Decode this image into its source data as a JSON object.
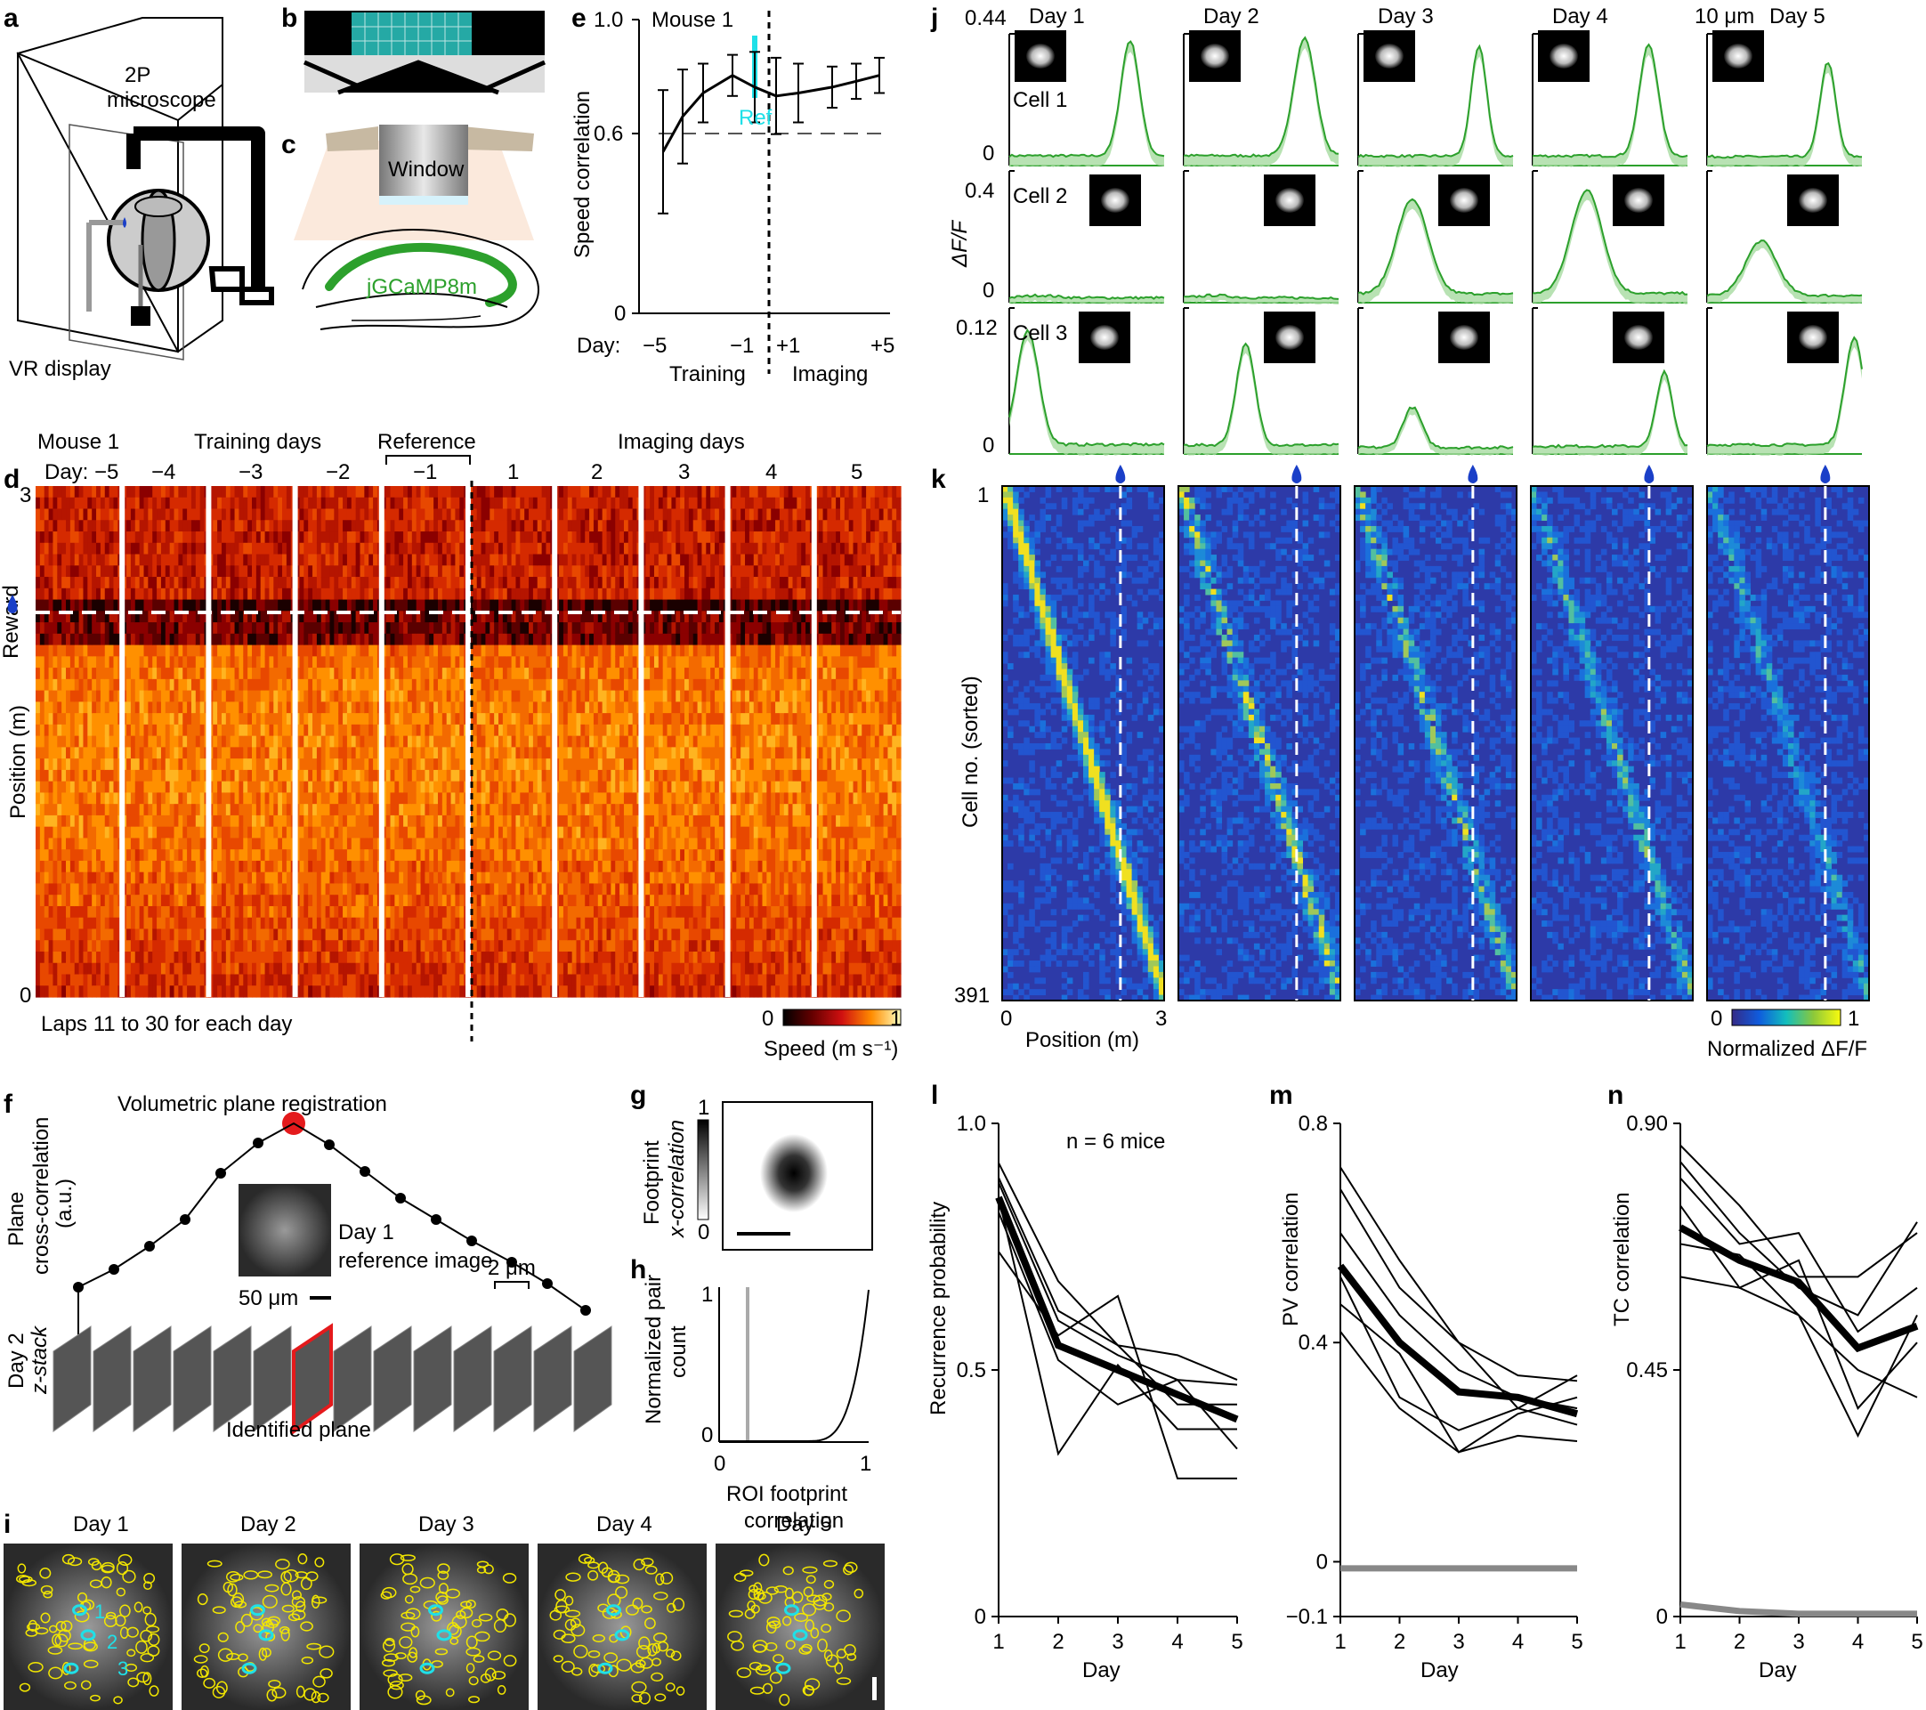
{
  "panel_letters": {
    "a": "a",
    "b": "b",
    "c": "c",
    "d": "d",
    "e": "e",
    "f": "f",
    "g": "g",
    "h": "h",
    "i": "i",
    "j": "j",
    "k": "k",
    "l": "l",
    "m": "m",
    "n": "n"
  },
  "colors": {
    "green": "#2ca02c",
    "cyan": "#1fe0e8",
    "red": "#e41a1c",
    "yellow": "#f2e600",
    "black": "#000000",
    "gray": "#808080"
  },
  "panel_a": {
    "microscope_l1": "2P",
    "microscope_l2": "microscope",
    "display": "VR display"
  },
  "panel_c": {
    "window": "Window",
    "indicator": "jGCaMP8m"
  },
  "panel_e": {
    "mouse": "Mouse 1",
    "ylabel": "Speed correlation",
    "yticks": [
      "1.0",
      "0.6",
      "0"
    ],
    "xtick_prefix": "Day:",
    "xticks": [
      "−5",
      "−1",
      "+1",
      "+5"
    ],
    "group_training": "Training",
    "group_imaging": "Imaging",
    "ref": "Ref"
  },
  "panel_d": {
    "header": {
      "mouse": "Mouse 1",
      "training": "Training days",
      "reference": "Reference",
      "imaging": "Imaging days"
    },
    "day_labels": [
      "Day: −5",
      "−4",
      "−3",
      "−2",
      "−1",
      "1",
      "2",
      "3",
      "4",
      "5"
    ],
    "yticks": [
      "3",
      "0"
    ],
    "ylabel": "Position (m)",
    "reward": "Reward",
    "footnote": "Laps 11 to 30 for each day",
    "cbar_min": "0",
    "cbar_max": "1",
    "cbar_label": "Speed (m s⁻¹)"
  },
  "panel_j": {
    "days": [
      "Day 1",
      "Day 2",
      "Day 3",
      "Day 4",
      "Day 5"
    ],
    "scale": "10 μm",
    "ylabel": "ΔF/F",
    "cells": [
      {
        "name": "Cell 1",
        "ymax": "0.44",
        "ymin": "0"
      },
      {
        "name": "Cell 2",
        "ymax": "0.4",
        "ymin": "0"
      },
      {
        "name": "Cell 3",
        "ymax": "0.12",
        "ymin": "0"
      }
    ]
  },
  "panel_k": {
    "ylabel": "Cell no. (sorted)",
    "ytick_top": "1",
    "ytick_bottom": "391",
    "xtick_min": "0",
    "xtick_max": "3",
    "xlabel": "Position (m)",
    "cbar_min": "0",
    "cbar_max": "1",
    "cbar_label": "Normalized ΔF/F"
  },
  "panel_f": {
    "title": "Volumetric plane registration",
    "ylabel_l1": "Plane",
    "ylabel_l2": "cross-correlation",
    "ylabel_l3": "(a.u.)",
    "inset_l1": "Day 1",
    "inset_l2": "reference image",
    "scale_inset": "50 μm",
    "scale_stack": "2 μm",
    "stack_l1": "Day 2",
    "stack_l2": "z-stack",
    "identified": "Identified plane"
  },
  "panel_g": {
    "ylabel_l1": "Footprint",
    "ylabel_l2": "x-correlation",
    "cbar_max": "1",
    "cbar_min": "0"
  },
  "panel_h": {
    "ylabel_l1": "Normalized pair",
    "ylabel_l2": "count",
    "yticks": [
      "1",
      "0"
    ],
    "xticks": [
      "0",
      "1"
    ],
    "xlabel_l1": "ROI footprint",
    "xlabel_l2": "correlation"
  },
  "panel_i": {
    "days": [
      "Day 1",
      "Day 2",
      "Day 3",
      "Day 4",
      "Day 5"
    ],
    "cell_numbers": [
      "1",
      "2",
      "3"
    ]
  },
  "chart_data": [
    {
      "id": "e",
      "type": "line",
      "title": "Mouse 1",
      "xlabel": "Day",
      "ylabel": "Speed correlation",
      "x": [
        -5,
        -4,
        -3,
        -2,
        -1,
        1,
        2,
        3,
        4,
        5
      ],
      "series": [
        {
          "values": [
            0.55,
            0.67,
            0.75,
            0.81,
            0.77,
            0.74,
            0.75,
            0.77,
            0.79,
            0.81
          ],
          "err": [
            0.21,
            0.16,
            0.1,
            0.07,
            0.12,
            0.13,
            0.1,
            0.07,
            0.06,
            0.06
          ]
        }
      ],
      "xlim": [
        -5.3,
        5.3
      ],
      "ylim": [
        0,
        1
      ],
      "reference_line": 0.6
    },
    {
      "id": "l",
      "type": "line",
      "xlabel": "Day",
      "ylabel": "Recurrence probability",
      "annotation": "n = 6 mice",
      "x": [
        1,
        2,
        3,
        4,
        5
      ],
      "xlim": [
        1,
        5
      ],
      "ylim": [
        0,
        1
      ],
      "yticks": [
        "0",
        "0.5",
        "1.0"
      ],
      "xticks": [
        "1",
        "2",
        "3",
        "4",
        "5"
      ],
      "mean": [
        0.85,
        0.55,
        0.5,
        0.45,
        0.4
      ],
      "individual": [
        [
          0.92,
          0.68,
          0.55,
          0.53,
          0.48
        ],
        [
          0.89,
          0.62,
          0.55,
          0.43,
          0.43
        ],
        [
          0.85,
          0.33,
          0.51,
          0.38,
          0.38
        ],
        [
          0.88,
          0.6,
          0.53,
          0.48,
          0.47
        ],
        [
          0.74,
          0.57,
          0.65,
          0.28,
          0.28
        ],
        [
          0.82,
          0.52,
          0.43,
          0.48,
          0.34
        ]
      ]
    },
    {
      "id": "m",
      "type": "line",
      "xlabel": "Day",
      "ylabel": "PV correlation",
      "x": [
        1,
        2,
        3,
        4,
        5
      ],
      "xlim": [
        1,
        5
      ],
      "ylim": [
        -0.1,
        0.8
      ],
      "yticks": [
        "−0.1",
        "0",
        "0.4",
        "0.8"
      ],
      "xticks": [
        "1",
        "2",
        "3",
        "4",
        "5"
      ],
      "mean": [
        0.54,
        0.4,
        0.31,
        0.3,
        0.27
      ],
      "shuffle": [
        -0.012,
        -0.012,
        -0.012,
        -0.012,
        -0.012
      ],
      "individual": [
        [
          0.72,
          0.55,
          0.4,
          0.34,
          0.33
        ],
        [
          0.68,
          0.5,
          0.4,
          0.28,
          0.34
        ],
        [
          0.6,
          0.45,
          0.35,
          0.3,
          0.28
        ],
        [
          0.52,
          0.3,
          0.24,
          0.28,
          0.25
        ],
        [
          0.47,
          0.38,
          0.2,
          0.27,
          0.3
        ],
        [
          0.42,
          0.28,
          0.2,
          0.23,
          0.22
        ]
      ]
    },
    {
      "id": "n",
      "type": "line",
      "xlabel": "Day",
      "ylabel": "TC correlation",
      "x": [
        1,
        2,
        3,
        4,
        5
      ],
      "xlim": [
        1,
        5
      ],
      "ylim": [
        0,
        0.9
      ],
      "yticks": [
        "0",
        "0.45",
        "0.90"
      ],
      "xticks": [
        "1",
        "2",
        "3",
        "4",
        "5"
      ],
      "mean": [
        0.71,
        0.65,
        0.61,
        0.49,
        0.53
      ],
      "shuffle": [
        0.022,
        0.01,
        0.005,
        0.005,
        0.005
      ],
      "individual": [
        [
          0.86,
          0.75,
          0.62,
          0.62,
          0.7
        ],
        [
          0.83,
          0.7,
          0.6,
          0.55,
          0.72
        ],
        [
          0.8,
          0.68,
          0.7,
          0.52,
          0.6
        ],
        [
          0.75,
          0.6,
          0.65,
          0.38,
          0.5
        ],
        [
          0.68,
          0.66,
          0.55,
          0.45,
          0.4
        ],
        [
          0.62,
          0.6,
          0.55,
          0.33,
          0.55
        ]
      ]
    }
  ]
}
